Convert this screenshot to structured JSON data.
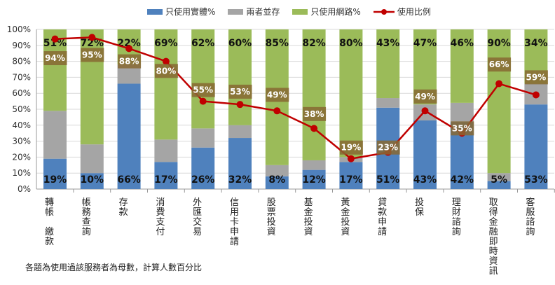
{
  "chart_data": {
    "type": "bar",
    "stacked": true,
    "categories": [
      "轉帳繳款",
      "帳務查詢",
      "存款",
      "消費支付",
      "外匯交易",
      "信用卡申請",
      "股票投資",
      "基金投資",
      "黃金投資",
      "貸款申請",
      "投保",
      "理財諮詢",
      "取得金融即時資訊",
      "客服諮詢"
    ],
    "category_labels": [
      "轉帳\n\n繳款",
      "帳務查詢",
      "存款",
      "消費支付",
      "外匯交易",
      "信用卡申請",
      "股票投資",
      "基金投資",
      "黃金投資",
      "貸款申請",
      "投保",
      "理財諮詢",
      "取得金融即時資訊",
      "客服諮詢"
    ],
    "series": [
      {
        "name": "只使用實體%",
        "type": "bar",
        "color": "#4f81bd",
        "values": [
          19,
          10,
          66,
          17,
          26,
          32,
          8,
          12,
          17,
          51,
          43,
          42,
          5,
          53
        ]
      },
      {
        "name": "兩者並存",
        "type": "bar",
        "color": "#a5a5a5",
        "values": [
          30,
          18,
          12,
          14,
          12,
          8,
          7,
          6,
          3,
          6,
          10,
          12,
          5,
          13
        ]
      },
      {
        "name": "只使用網路%",
        "type": "bar",
        "color": "#9bbb59",
        "values": [
          51,
          72,
          22,
          69,
          62,
          60,
          85,
          82,
          80,
          43,
          47,
          46,
          90,
          34
        ]
      },
      {
        "name": "使用比例",
        "type": "line",
        "color": "#c00000",
        "values": [
          94,
          95,
          88,
          80,
          55,
          53,
          49,
          38,
          19,
          23,
          49,
          35,
          66,
          59
        ]
      }
    ],
    "ylim": [
      0,
      100
    ],
    "yticks": [
      "0%",
      "10%",
      "20%",
      "30%",
      "40%",
      "50%",
      "60%",
      "70%",
      "80%",
      "90%",
      "100%"
    ],
    "grid": true,
    "legend_position": "top",
    "footnote": "各題為使用過該服務者為母數，計算人數百分比"
  }
}
